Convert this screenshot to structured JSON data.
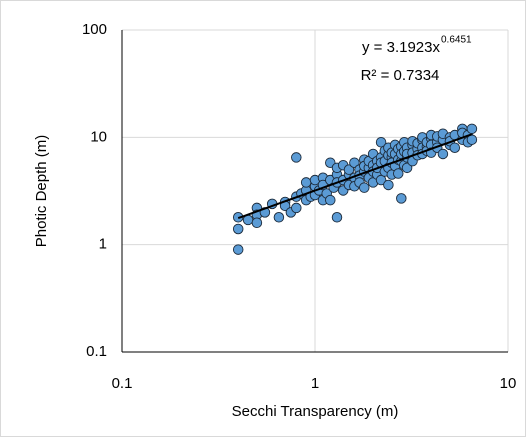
{
  "chart_data": {
    "type": "scatter",
    "x_label": "Secchi Transparency (m)",
    "y_label": "Photic Depth (m)",
    "x_log": true,
    "y_log": true,
    "grid": true,
    "xlim": [
      0.1,
      10
    ],
    "xticks": [
      0.1,
      1,
      10
    ],
    "ylim": [
      0.1,
      100
    ],
    "yticks": [
      0.1,
      1,
      10,
      100
    ],
    "color": "#5b9bd5",
    "edge_color": "#1c2a3a",
    "x": [
      0.4,
      0.4,
      0.4,
      0.45,
      0.5,
      0.5,
      0.5,
      0.55,
      0.6,
      0.65,
      0.7,
      0.7,
      0.75,
      0.8,
      0.8,
      0.8,
      0.85,
      0.9,
      0.9,
      0.9,
      0.95,
      1.0,
      1.0,
      1.0,
      1.05,
      1.1,
      1.1,
      1.1,
      1.15,
      1.2,
      1.2,
      1.2,
      1.25,
      1.3,
      1.3,
      1.3,
      1.3,
      1.4,
      1.4,
      1.4,
      1.5,
      1.5,
      1.5,
      1.6,
      1.6,
      1.6,
      1.7,
      1.7,
      1.7,
      1.8,
      1.8,
      1.8,
      1.8,
      1.9,
      1.9,
      1.9,
      2.0,
      2.0,
      2.0,
      2.0,
      2.1,
      2.1,
      2.1,
      2.2,
      2.2,
      2.2,
      2.2,
      2.3,
      2.3,
      2.3,
      2.4,
      2.4,
      2.4,
      2.4,
      2.5,
      2.5,
      2.5,
      2.5,
      2.6,
      2.6,
      2.6,
      2.7,
      2.7,
      2.7,
      2.8,
      2.8,
      2.8,
      2.8,
      2.9,
      2.9,
      2.9,
      3.0,
      3.0,
      3.0,
      3.0,
      3.2,
      3.2,
      3.2,
      3.2,
      3.4,
      3.4,
      3.4,
      3.6,
      3.6,
      3.6,
      3.6,
      3.8,
      3.8,
      3.8,
      4.0,
      4.0,
      4.0,
      4.0,
      4.3,
      4.3,
      4.3,
      4.6,
      4.6,
      4.6,
      5.0,
      5.0,
      5.0,
      5.3,
      5.3,
      5.8,
      5.8,
      5.8,
      6.2,
      6.2,
      6.5,
      6.5
    ],
    "y": [
      1.8,
      1.4,
      0.9,
      1.7,
      2.2,
      1.9,
      1.6,
      2.0,
      2.4,
      1.8,
      2.5,
      2.3,
      2.0,
      2.8,
      6.5,
      2.2,
      3.0,
      3.2,
      2.6,
      3.8,
      2.8,
      3.5,
      4.0,
      2.9,
      3.2,
      4.2,
      3.6,
      2.6,
      3.0,
      5.8,
      4.0,
      2.6,
      3.4,
      4.5,
      1.8,
      5.2,
      3.8,
      4.0,
      3.2,
      5.5,
      4.5,
      3.6,
      5.0,
      4.2,
      5.8,
      3.5,
      5.0,
      4.4,
      3.8,
      6.2,
      4.8,
      3.4,
      5.4,
      5.2,
      4.2,
      6.0,
      5.5,
      4.8,
      7.0,
      3.8,
      6.0,
      4.5,
      5.2,
      9.0,
      6.5,
      4.0,
      5.8,
      6.0,
      7.5,
      4.8,
      5.2,
      6.8,
      3.6,
      8.0,
      6.5,
      7.2,
      4.5,
      5.8,
      7.0,
      5.4,
      8.5,
      6.2,
      7.8,
      4.6,
      2.7,
      8.2,
      6.0,
      7.0,
      7.4,
      5.5,
      9.0,
      8.0,
      6.5,
      7.0,
      5.2,
      8.5,
      7.2,
      6.0,
      9.2,
      7.8,
      8.8,
      6.8,
      9.5,
      8.0,
      7.0,
      10.0,
      8.2,
      7.5,
      9.0,
      9.8,
      8.5,
      7.2,
      10.5,
      9.0,
      8.0,
      10.2,
      9.5,
      7.0,
      10.8,
      10.0,
      8.5,
      9.2,
      8.0,
      10.5,
      12.0,
      9.5,
      11.0,
      10.5,
      9.0,
      12.0,
      9.5
    ],
    "trendline": {
      "equation": "y = 3.1923x",
      "equation_exponent": "0.6451",
      "r_squared": "R² = 0.7334",
      "coefficient": 3.1923,
      "exponent": 0.6451,
      "color": "#000000"
    }
  }
}
